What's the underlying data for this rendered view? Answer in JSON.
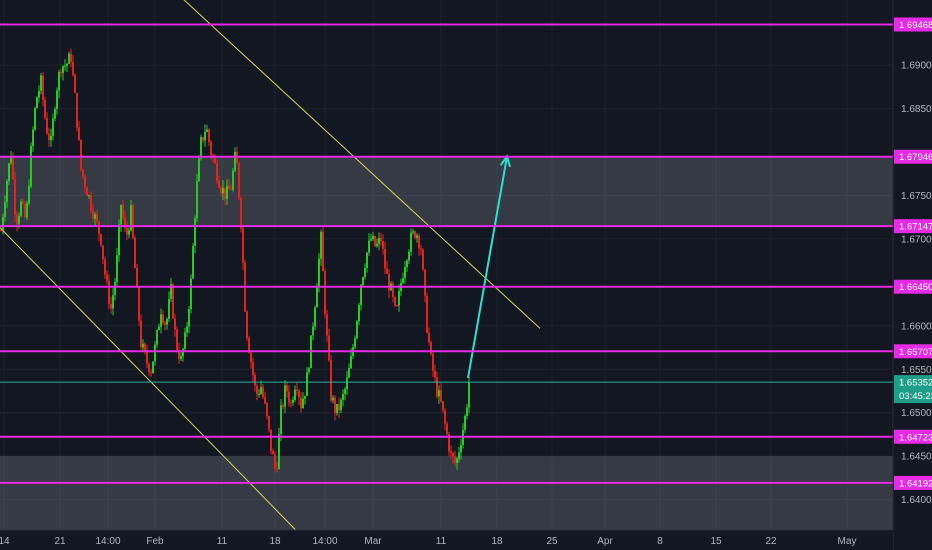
{
  "chart_data": {
    "type": "candlestick",
    "instrument_note": "",
    "y_axis": {
      "range": [
        1.6365,
        1.6975
      ],
      "ticks": [
        "1.69000",
        "1.68500",
        "1.67500",
        "1.67000",
        "1.66000",
        "1.65500",
        "1.65000",
        "1.64500",
        "1.64000"
      ]
    },
    "x_axis": {
      "ticks": [
        "14",
        "21",
        "14:00",
        "Feb",
        "11",
        "18",
        "14:00",
        "Mar",
        "11",
        "18",
        "25",
        "Apr",
        "8",
        "15",
        "22",
        "May"
      ]
    },
    "horizontal_levels": [
      {
        "value": 1.69468,
        "label": "1.69468"
      },
      {
        "value": 1.67946,
        "label": "1.67946"
      },
      {
        "value": 1.67147,
        "label": "1.67147"
      },
      {
        "value": 1.6645,
        "label": "1.66450"
      },
      {
        "value": 1.65707,
        "label": "1.65707"
      },
      {
        "value": 1.64723,
        "label": "1.64723"
      },
      {
        "value": 1.64192,
        "label": "1.64192"
      }
    ],
    "zones": [
      {
        "from": 1.67147,
        "to": 1.67946
      },
      {
        "from": 1.64192,
        "to": 1.645
      }
    ],
    "current_price": {
      "value": 1.65352,
      "label": "1.65352",
      "countdown": "03:45:23"
    },
    "close_path": [
      [
        0,
        1.671
      ],
      [
        5,
        1.676
      ],
      [
        10,
        1.68
      ],
      [
        15,
        1.672
      ],
      [
        20,
        1.674
      ],
      [
        25,
        1.672
      ],
      [
        30,
        1.68
      ],
      [
        35,
        1.686
      ],
      [
        40,
        1.688
      ],
      [
        45,
        1.683
      ],
      [
        50,
        1.681
      ],
      [
        55,
        1.687
      ],
      [
        60,
        1.69
      ],
      [
        65,
        1.69
      ],
      [
        70,
        1.691
      ],
      [
        75,
        1.685
      ],
      [
        80,
        1.678
      ],
      [
        85,
        1.676
      ],
      [
        90,
        1.674
      ],
      [
        95,
        1.672
      ],
      [
        100,
        1.67
      ],
      [
        105,
        1.665
      ],
      [
        110,
        1.662
      ],
      [
        115,
        1.666
      ],
      [
        120,
        1.674
      ],
      [
        125,
        1.67
      ],
      [
        130,
        1.673
      ],
      [
        135,
        1.665
      ],
      [
        140,
        1.658
      ],
      [
        145,
        1.656
      ],
      [
        150,
        1.655
      ],
      [
        155,
        1.658
      ],
      [
        160,
        1.662
      ],
      [
        165,
        1.66
      ],
      [
        170,
        1.664
      ],
      [
        175,
        1.658
      ],
      [
        180,
        1.656
      ],
      [
        185,
        1.659
      ],
      [
        190,
        1.665
      ],
      [
        195,
        1.675
      ],
      [
        200,
        1.681
      ],
      [
        205,
        1.683
      ],
      [
        210,
        1.68
      ],
      [
        215,
        1.678
      ],
      [
        220,
        1.676
      ],
      [
        225,
        1.675
      ],
      [
        230,
        1.676
      ],
      [
        235,
        1.68
      ],
      [
        240,
        1.672
      ],
      [
        245,
        1.66
      ],
      [
        250,
        1.656
      ],
      [
        255,
        1.652
      ],
      [
        260,
        1.653
      ],
      [
        265,
        1.65
      ],
      [
        270,
        1.646
      ],
      [
        275,
        1.643
      ],
      [
        280,
        1.65
      ],
      [
        285,
        1.653
      ],
      [
        290,
        1.651
      ],
      [
        295,
        1.654
      ],
      [
        300,
        1.651
      ],
      [
        305,
        1.653
      ],
      [
        310,
        1.658
      ],
      [
        315,
        1.664
      ],
      [
        320,
        1.67
      ],
      [
        325,
        1.66
      ],
      [
        330,
        1.652
      ],
      [
        335,
        1.65
      ],
      [
        340,
        1.651
      ],
      [
        345,
        1.653
      ],
      [
        350,
        1.656
      ],
      [
        355,
        1.66
      ],
      [
        360,
        1.665
      ],
      [
        365,
        1.668
      ],
      [
        370,
        1.67
      ],
      [
        375,
        1.669
      ],
      [
        380,
        1.67
      ],
      [
        385,
        1.666
      ],
      [
        390,
        1.664
      ],
      [
        395,
        1.661
      ],
      [
        400,
        1.665
      ],
      [
        405,
        1.668
      ],
      [
        410,
        1.67
      ],
      [
        415,
        1.671
      ],
      [
        420,
        1.669
      ],
      [
        425,
        1.661
      ],
      [
        430,
        1.656
      ],
      [
        435,
        1.653
      ],
      [
        440,
        1.651
      ],
      [
        445,
        1.648
      ],
      [
        450,
        1.645
      ],
      [
        455,
        1.644
      ],
      [
        460,
        1.647
      ],
      [
        465,
        1.65
      ],
      [
        468,
        1.65352
      ]
    ],
    "annotations": [
      {
        "type": "trendline",
        "points": [
          [
            0,
            1.6713
          ],
          [
            300,
            1.636
          ]
        ]
      },
      {
        "type": "trendline",
        "points": [
          [
            170,
            1.699
          ],
          [
            540,
            1.6597
          ]
        ]
      },
      {
        "type": "arrow",
        "from": [
          468,
          1.654
        ],
        "to": [
          507,
          1.6795
        ]
      }
    ]
  }
}
